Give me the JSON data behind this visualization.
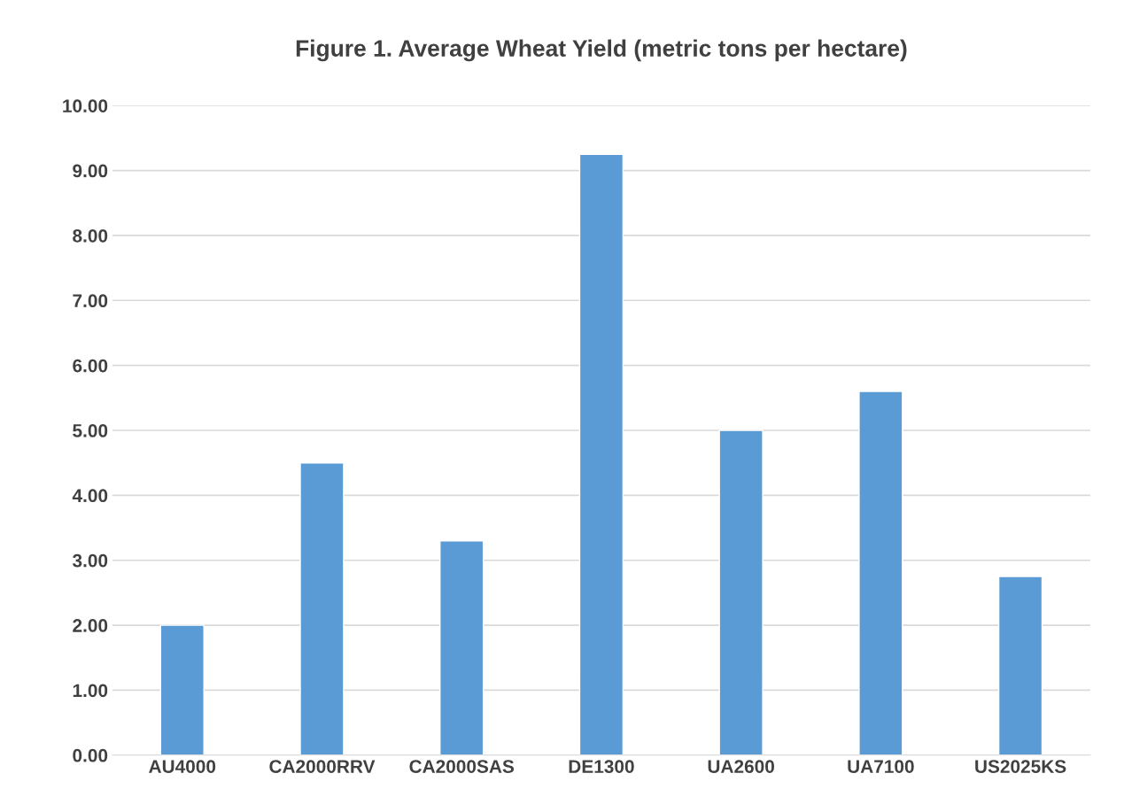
{
  "chart_data": {
    "type": "bar",
    "title": "Figure 1. Average Wheat Yield (metric tons per hectare)",
    "categories": [
      "AU4000",
      "CA2000RRV",
      "CA2000SAS",
      "DE1300",
      "UA2600",
      "UA7100",
      "US2025KS"
    ],
    "values": [
      2.0,
      4.5,
      3.3,
      9.25,
      5.0,
      5.6,
      2.75
    ],
    "color": "#5b9bd5",
    "ylim": [
      0,
      10
    ],
    "yticks": [
      {
        "value": 0,
        "label": "0.00"
      },
      {
        "value": 1,
        "label": "1.00"
      },
      {
        "value": 2,
        "label": "2.00"
      },
      {
        "value": 3,
        "label": "3.00"
      },
      {
        "value": 4,
        "label": "4.00"
      },
      {
        "value": 5,
        "label": "5.00"
      },
      {
        "value": 6,
        "label": "6.00"
      },
      {
        "value": 7,
        "label": "7.00"
      },
      {
        "value": 8,
        "label": "8.00"
      },
      {
        "value": 9,
        "label": "9.00"
      },
      {
        "value": 10,
        "label": "10.00"
      }
    ],
    "grid": "y"
  }
}
